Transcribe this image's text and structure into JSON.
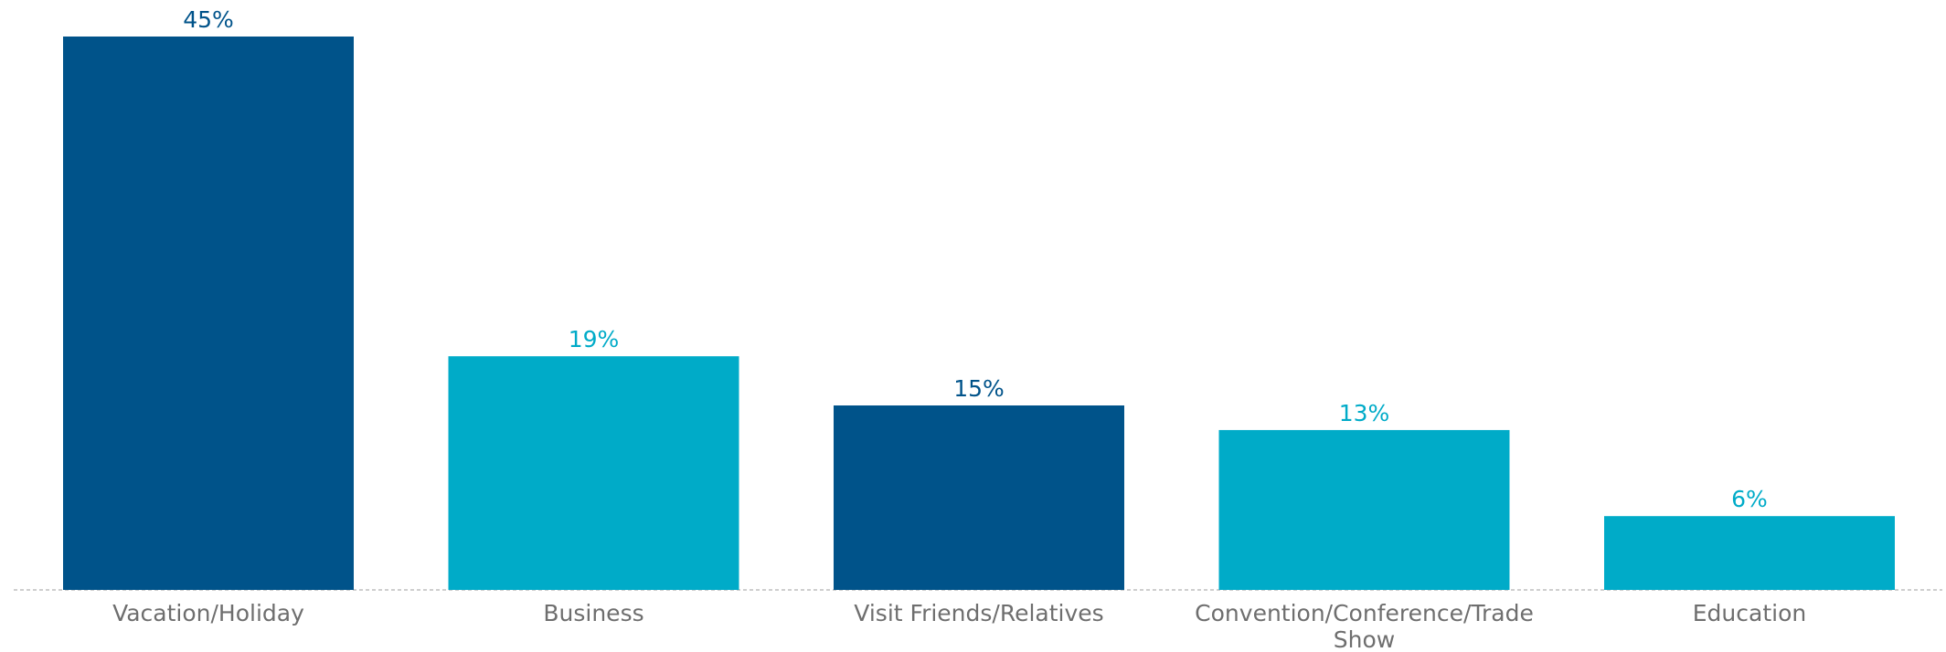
{
  "chart_data": {
    "type": "bar",
    "categories": [
      [
        "Vacation/Holiday"
      ],
      [
        "Business"
      ],
      [
        "Visit Friends/Relatives"
      ],
      [
        "Convention/Conference/Trade",
        "Show"
      ],
      [
        "Education"
      ]
    ],
    "values": [
      45,
      19,
      15,
      13,
      6
    ],
    "value_labels": [
      "45%",
      "19%",
      "15%",
      "13%",
      "6%"
    ],
    "bar_colors": [
      "#00538a",
      "#00abc8",
      "#00538a",
      "#00abc8",
      "#00abc8"
    ],
    "label_colors": [
      "#00538a",
      "#00abc8",
      "#00538a",
      "#00abc8",
      "#00abc8"
    ],
    "axis_color": "#bdbdbd",
    "title": "",
    "xlabel": "",
    "ylabel": "",
    "ylim": [
      0,
      45
    ],
    "grid": false,
    "legend": "none"
  }
}
